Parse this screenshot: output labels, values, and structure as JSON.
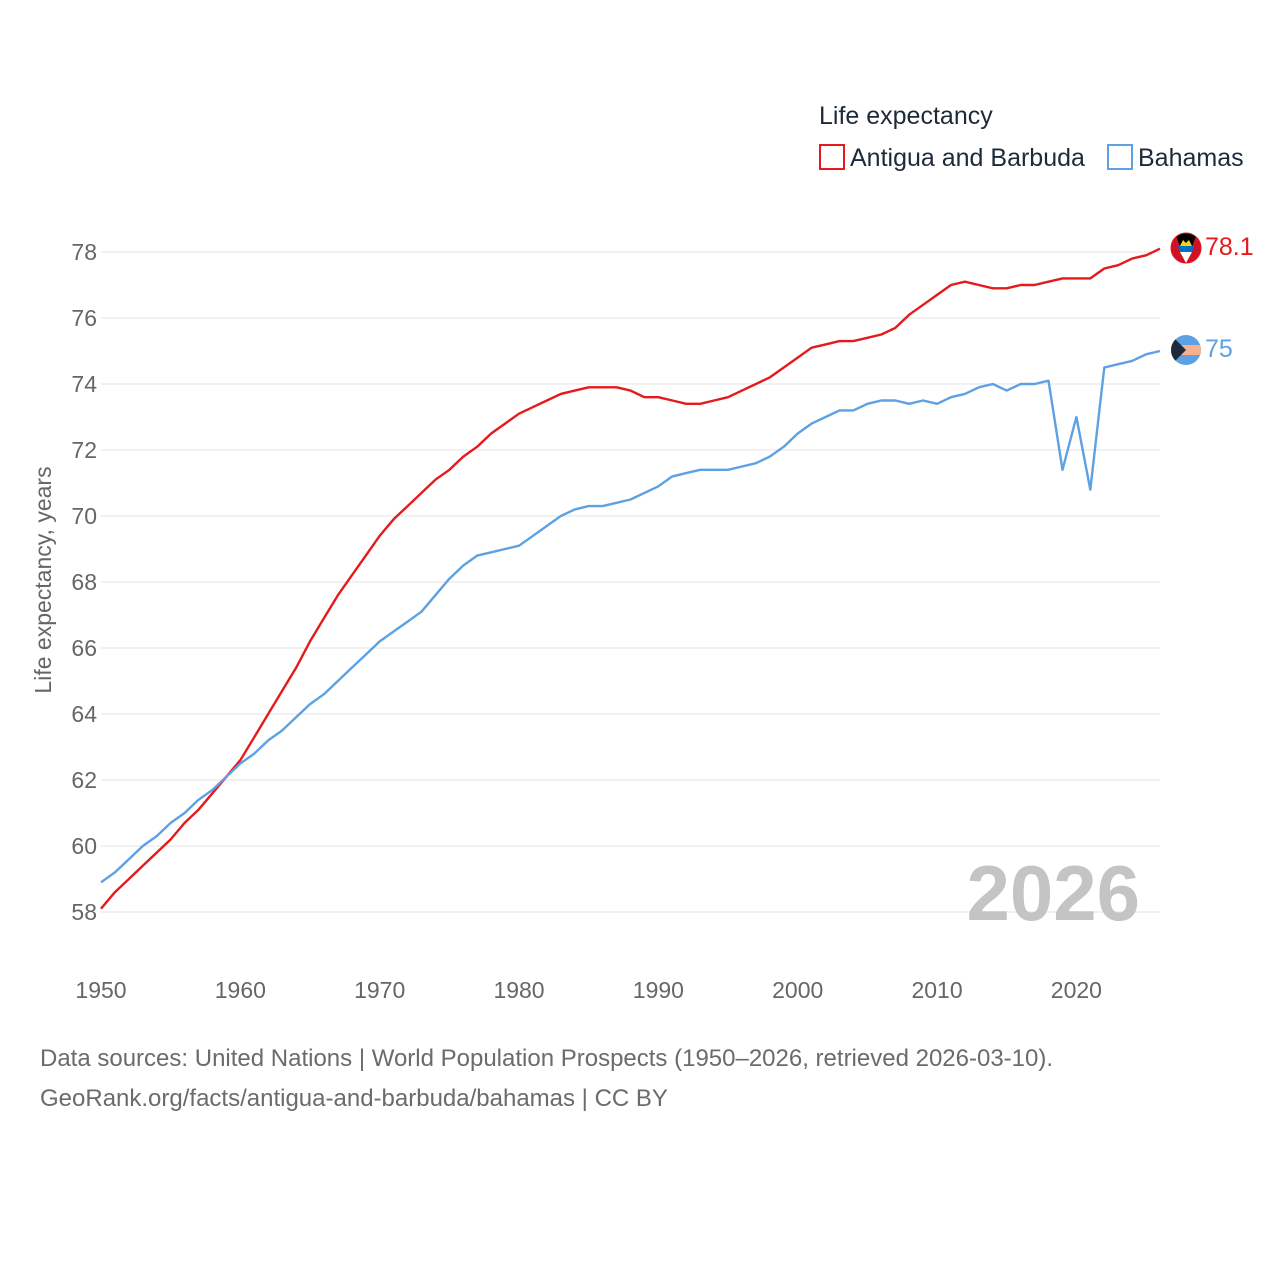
{
  "chart_data": {
    "type": "line",
    "legend_title": "Life expectancy",
    "ylabel": "Life expectancy, years",
    "ylim": [
      57,
      79
    ],
    "xlim": [
      1950,
      2026
    ],
    "y_ticks": [
      58,
      60,
      62,
      64,
      66,
      68,
      70,
      72,
      74,
      76,
      78
    ],
    "x_ticks": [
      1950,
      1960,
      1970,
      1980,
      1990,
      2000,
      2010,
      2020
    ],
    "current_year": "2026",
    "series": [
      {
        "name": "Antigua and Barbuda",
        "color": "#e41a1c",
        "end_label": "78.1",
        "start_year": 1950,
        "values": [
          58.1,
          58.6,
          59.0,
          59.4,
          59.8,
          60.2,
          60.7,
          61.1,
          61.6,
          62.1,
          62.6,
          63.3,
          64.0,
          64.7,
          65.4,
          66.2,
          66.9,
          67.6,
          68.2,
          68.8,
          69.4,
          69.9,
          70.3,
          70.7,
          71.1,
          71.4,
          71.8,
          72.1,
          72.5,
          72.8,
          73.1,
          73.3,
          73.5,
          73.7,
          73.8,
          73.9,
          73.9,
          73.9,
          73.8,
          73.6,
          73.6,
          73.5,
          73.4,
          73.4,
          73.5,
          73.6,
          73.8,
          74.0,
          74.2,
          74.5,
          74.8,
          75.1,
          75.2,
          75.3,
          75.3,
          75.4,
          75.5,
          75.7,
          76.1,
          76.4,
          76.7,
          77.0,
          77.1,
          77.0,
          76.9,
          76.9,
          77.0,
          77.0,
          77.1,
          77.2,
          77.2,
          77.2,
          77.5,
          77.6,
          77.8,
          77.9,
          78.1
        ]
      },
      {
        "name": "Bahamas",
        "color": "#5ea1e3",
        "end_label": "75",
        "start_year": 1950,
        "values": [
          58.9,
          59.2,
          59.6,
          60.0,
          60.3,
          60.7,
          61.0,
          61.4,
          61.7,
          62.1,
          62.5,
          62.8,
          63.2,
          63.5,
          63.9,
          64.3,
          64.6,
          65.0,
          65.4,
          65.8,
          66.2,
          66.5,
          66.8,
          67.1,
          67.6,
          68.1,
          68.5,
          68.8,
          68.9,
          69.0,
          69.1,
          69.4,
          69.7,
          70.0,
          70.2,
          70.3,
          70.3,
          70.4,
          70.5,
          70.7,
          70.9,
          71.2,
          71.3,
          71.4,
          71.4,
          71.4,
          71.5,
          71.6,
          71.8,
          72.1,
          72.5,
          72.8,
          73.0,
          73.2,
          73.2,
          73.4,
          73.5,
          73.5,
          73.4,
          73.5,
          73.4,
          73.6,
          73.7,
          73.9,
          74.0,
          73.8,
          74.0,
          74.0,
          74.1,
          71.4,
          73.0,
          70.8,
          74.5,
          74.6,
          74.7,
          74.9,
          75.0
        ]
      }
    ]
  },
  "footer": {
    "line1": "Data sources: United Nations | World Population Prospects (1950–2026, retrieved 2026-03-10).",
    "line2": "GeoRank.org/facts/antigua-and-barbuda/bahamas | CC BY"
  }
}
